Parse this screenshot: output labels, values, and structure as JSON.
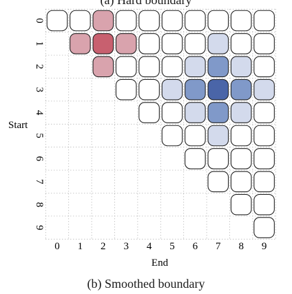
{
  "top_caption": "(a) Hard boundary",
  "caption": "(b) Smoothed boundary",
  "y_label": "Start",
  "x_label": "End",
  "row_ticks": [
    "0",
    "1",
    "2",
    "3",
    "4",
    "5",
    "6",
    "7",
    "8",
    "9"
  ],
  "col_ticks": [
    "0",
    "1",
    "2",
    "3",
    "4",
    "5",
    "6",
    "7",
    "8",
    "9"
  ],
  "colors": {
    "red_dark": "#c8606f",
    "red_light": "#d9a3ad",
    "blue_dark": "#4a65a8",
    "blue_mid": "#8099c9",
    "blue_light": "#d3daec",
    "empty": "#ffffff",
    "stroke": "#222222",
    "dot_grid": "#9a9a9a"
  },
  "highlighted_cells": [
    {
      "start": 1,
      "end": 2,
      "color": "red_dark"
    },
    {
      "start": 0,
      "end": 2,
      "color": "red_light"
    },
    {
      "start": 1,
      "end": 1,
      "color": "red_light"
    },
    {
      "start": 1,
      "end": 3,
      "color": "red_light"
    },
    {
      "start": 2,
      "end": 2,
      "color": "red_light"
    },
    {
      "start": 3,
      "end": 7,
      "color": "blue_dark"
    },
    {
      "start": 2,
      "end": 7,
      "color": "blue_mid"
    },
    {
      "start": 3,
      "end": 6,
      "color": "blue_mid"
    },
    {
      "start": 3,
      "end": 8,
      "color": "blue_mid"
    },
    {
      "start": 4,
      "end": 7,
      "color": "blue_mid"
    },
    {
      "start": 1,
      "end": 7,
      "color": "blue_light"
    },
    {
      "start": 2,
      "end": 6,
      "color": "blue_light"
    },
    {
      "start": 2,
      "end": 8,
      "color": "blue_light"
    },
    {
      "start": 3,
      "end": 5,
      "color": "blue_light"
    },
    {
      "start": 3,
      "end": 9,
      "color": "blue_light"
    },
    {
      "start": 4,
      "end": 6,
      "color": "blue_light"
    },
    {
      "start": 4,
      "end": 8,
      "color": "blue_light"
    },
    {
      "start": 5,
      "end": 7,
      "color": "blue_light"
    }
  ]
}
